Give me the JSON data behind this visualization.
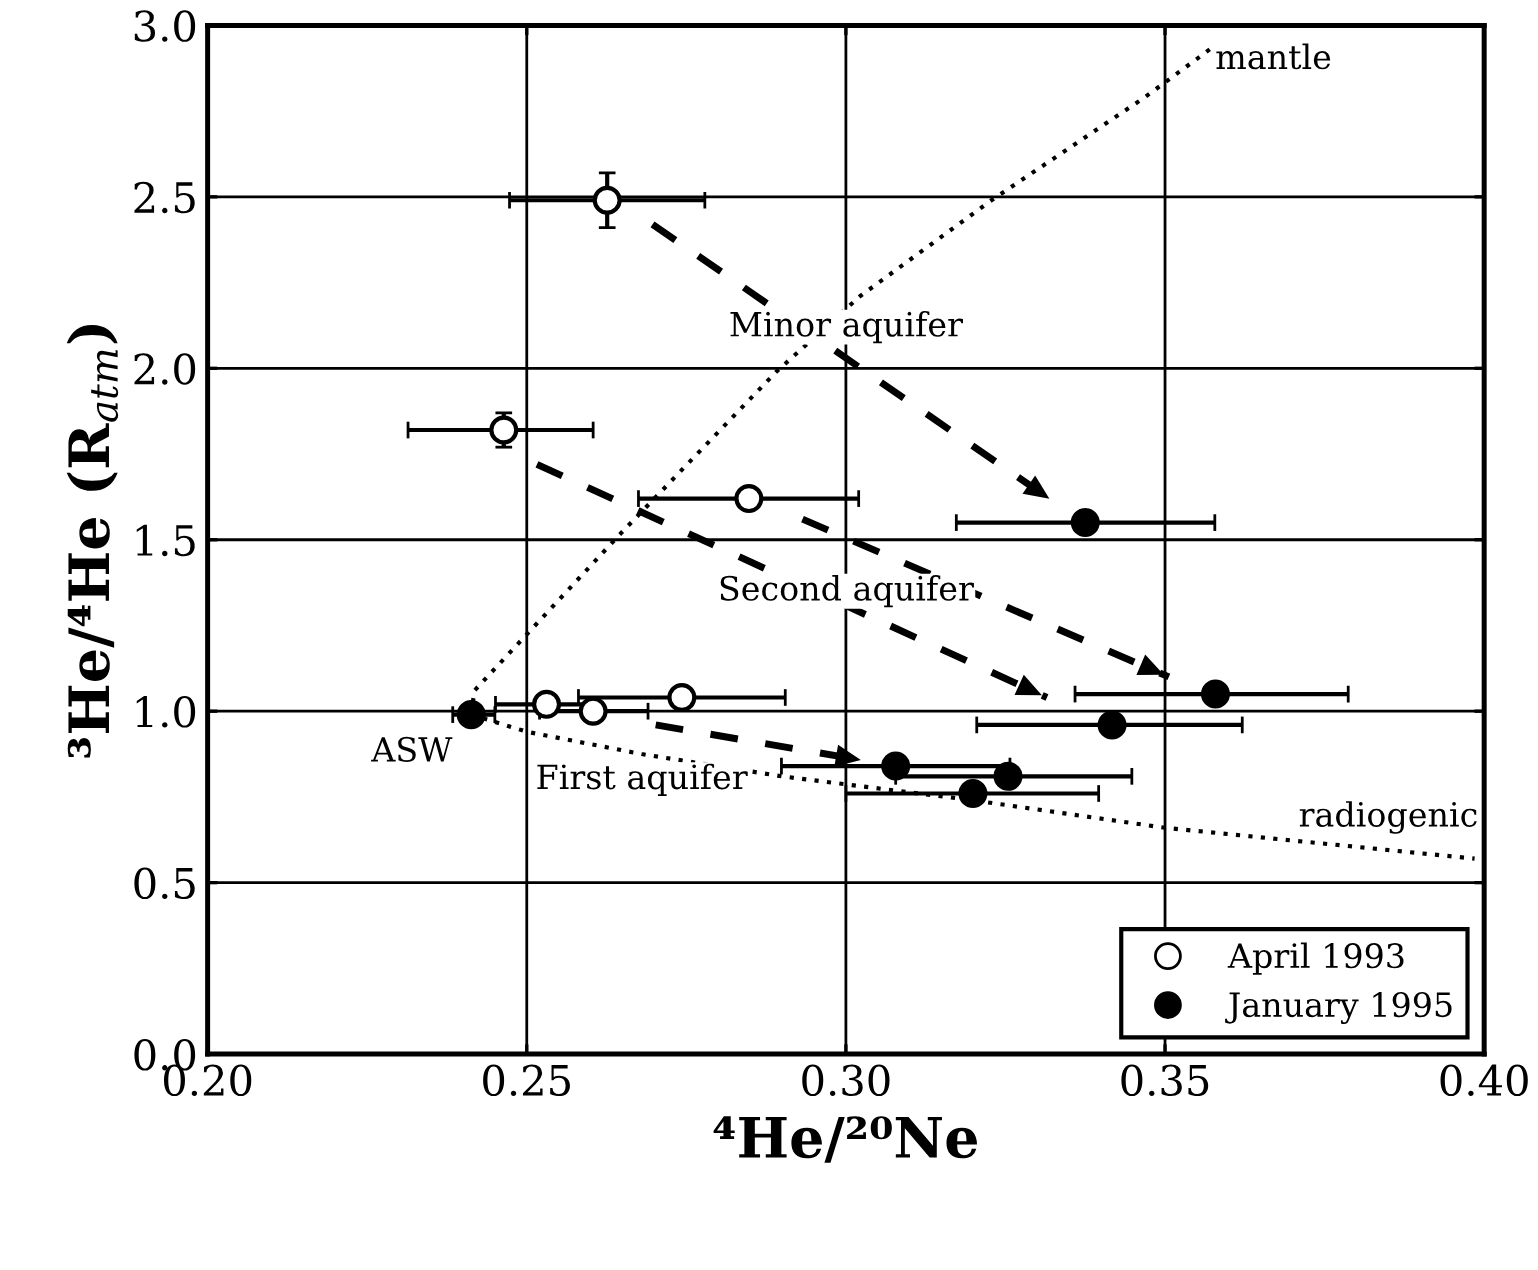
{
  "chart_data": {
    "type": "scatter",
    "xlabel": "⁴He/²⁰Ne",
    "ylabel": "³He/⁴He (R$_{atm}$)",
    "xlim": [
      0.2,
      0.4
    ],
    "ylim": [
      0.0,
      3.0
    ],
    "xticks": [
      {
        "value": 0.2,
        "label": "0.20"
      },
      0.25,
      {
        "value": 0.3,
        "label": "0.30"
      },
      0.35,
      {
        "value": 0.4,
        "label": "0.40"
      }
    ],
    "yticks": [
      {
        "value": 0.0,
        "label": "0.0"
      },
      0.5,
      {
        "value": 1.0,
        "label": "1.0"
      },
      1.5,
      {
        "value": 2.0,
        "label": "2.0"
      },
      2.5,
      {
        "value": 3.0,
        "label": "3.0"
      }
    ],
    "grid": true,
    "legend": "bottom right",
    "series": [
      {
        "name": "April 1993",
        "marker": "circle",
        "color": "#ffffff",
        "x": [
          0.2626,
          0.2464,
          0.2848,
          0.2531,
          0.2604,
          0.2743
        ],
        "values": [
          2.49,
          1.82,
          1.62,
          1.02,
          1.0,
          1.04
        ],
        "errors": [
          0.08,
          0.05,
          null,
          null,
          null,
          null
        ],
        "xerrors": [
          [
            0.2473,
            0.2779
          ],
          [
            0.2314,
            0.2604
          ],
          [
            0.2675,
            0.302
          ],
          [
            0.2451,
            0.261
          ],
          [
            0.252,
            0.269
          ],
          [
            0.2581,
            0.2905
          ]
        ]
      },
      {
        "name": "January 1995",
        "marker": "circle",
        "color": "#000000",
        "x": [
          0.2413,
          0.3375,
          0.3579,
          0.3417,
          0.3078,
          0.3254,
          0.3199
        ],
        "values": [
          0.99,
          1.55,
          1.05,
          0.96,
          0.84,
          0.81,
          0.76
        ],
        "xerrors": [
          [
            0.2384,
            0.245
          ],
          [
            0.3173,
            0.3578
          ],
          [
            0.3359,
            0.3787
          ],
          [
            0.3205,
            0.3621
          ],
          [
            0.2899,
            0.3257
          ],
          [
            0.3078,
            0.3448
          ],
          [
            0.3,
            0.3396
          ]
        ]
      },
      {
        "type": "line",
        "line_style": "dotted",
        "color": "#000000",
        "x": [
          0.2413,
          0.2418,
          0.2648,
          0.2891,
          0.3022,
          0.3228,
          0.3468,
          0.357
        ],
        "values": [
          0.99,
          1.06,
          1.52,
          1.99,
          2.21,
          2.49,
          2.79,
          2.93
        ]
      },
      {
        "type": "line",
        "line_style": "dotted",
        "color": "#000000",
        "x": [
          0.2413,
          0.25,
          0.268,
          0.29,
          0.32,
          0.35,
          0.3985
        ],
        "values": [
          0.99,
          0.94,
          0.875,
          0.81,
          0.74,
          0.66,
          0.57
        ]
      },
      {
        "type": "line",
        "line_style": "dashed",
        "color": "#000000",
        "x": [
          0.2697,
          0.3326
        ],
        "values": [
          2.42,
          1.61
        ]
      },
      {
        "type": "line",
        "line_style": "dashed",
        "color": "#000000",
        "x": [
          0.2516,
          0.3315
        ],
        "values": [
          1.72,
          1.04
        ]
      },
      {
        "type": "line",
        "line_style": "dashed",
        "color": "#000000",
        "x": [
          0.2932,
          0.3506
        ],
        "values": [
          1.56,
          1.1
        ]
      },
      {
        "type": "line",
        "line_style": "dashed",
        "color": "#000000",
        "x": [
          0.2702,
          0.3032
        ],
        "values": [
          0.96,
          0.855
        ]
      }
    ],
    "annotations": [
      "mantle",
      "Minor aquifer",
      "Second aquifer",
      "ASW",
      "First aquifer",
      "radiogenic"
    ]
  }
}
